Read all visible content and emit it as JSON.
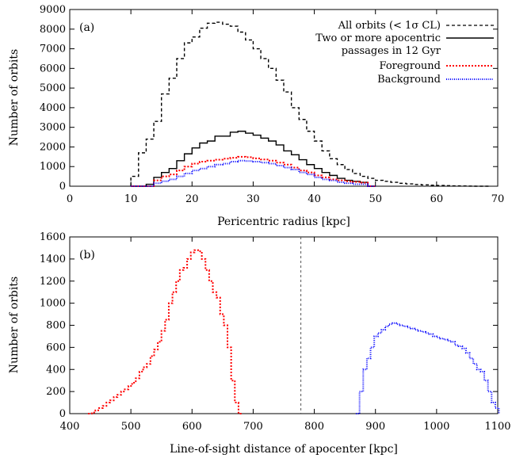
{
  "chart_data": [
    {
      "type": "line",
      "panel_label": "(a)",
      "xlabel": "Pericentric radius [kpc]",
      "ylabel": "Number of orbits",
      "xlim": [
        0,
        70
      ],
      "ylim": [
        0,
        9000
      ],
      "xticks": [
        0,
        10,
        20,
        30,
        40,
        50,
        60,
        70
      ],
      "yticks": [
        0,
        1000,
        2000,
        3000,
        4000,
        5000,
        6000,
        7000,
        8000,
        9000
      ],
      "legend_position": "top-right",
      "series": [
        {
          "name": "All orbits (< 1σ CL)",
          "color": "#000000",
          "style": "dashed",
          "bin_width": 1.25,
          "x": [
            10,
            11.25,
            12.5,
            13.75,
            15,
            16.25,
            17.5,
            18.75,
            20,
            21.25,
            22.5,
            23.75,
            25,
            26.25,
            27.5,
            28.75,
            30,
            31.25,
            32.5,
            33.75,
            35,
            36.25,
            37.5,
            38.75,
            40,
            41.25,
            42.5,
            43.75,
            45,
            46.25,
            47.5,
            48.75,
            50,
            51.25,
            52.5,
            53.75,
            55,
            56.25,
            57.5,
            58.75,
            60,
            61.25,
            62.5,
            63.75,
            65,
            66.25,
            67.5
          ],
          "values": [
            500,
            1700,
            2400,
            3300,
            4700,
            5500,
            6500,
            7300,
            7600,
            8050,
            8300,
            8350,
            8250,
            8150,
            7850,
            7450,
            7000,
            6500,
            6000,
            5400,
            4800,
            4000,
            3400,
            2800,
            2300,
            1800,
            1400,
            1100,
            850,
            650,
            500,
            400,
            300,
            250,
            200,
            150,
            120,
            90,
            70,
            50,
            35,
            25,
            15,
            10,
            5,
            0,
            0
          ]
        },
        {
          "name": "Two or more apocentric passages in 12 Gyr",
          "color": "#000000",
          "style": "solid",
          "bin_width": 1.25,
          "x": [
            10,
            11.25,
            12.5,
            13.75,
            15,
            16.25,
            17.5,
            18.75,
            20,
            21.25,
            22.5,
            23.75,
            25,
            26.25,
            27.5,
            28.75,
            30,
            31.25,
            32.5,
            33.75,
            35,
            36.25,
            37.5,
            38.75,
            40,
            41.25,
            42.5,
            43.75,
            45,
            46.25,
            47.5,
            48.75
          ],
          "values": [
            0,
            0,
            100,
            450,
            700,
            900,
            1300,
            1650,
            1950,
            2200,
            2300,
            2550,
            2550,
            2750,
            2800,
            2700,
            2600,
            2450,
            2300,
            2100,
            1800,
            1600,
            1350,
            1100,
            900,
            700,
            550,
            400,
            300,
            250,
            200,
            0
          ]
        },
        {
          "name": "Foreground",
          "color": "#ff0000",
          "style": "dotted",
          "bin_width": 1.25,
          "x": [
            10,
            11.25,
            12.5,
            13.75,
            15,
            16.25,
            17.5,
            18.75,
            20,
            21.25,
            22.5,
            23.75,
            25,
            26.25,
            27.5,
            28.75,
            30,
            31.25,
            32.5,
            33.75,
            35,
            36.25,
            37.5,
            38.75,
            40,
            41.25,
            42.5,
            43.75,
            45,
            46.25,
            47.5,
            48.75
          ],
          "values": [
            0,
            0,
            0,
            300,
            500,
            600,
            800,
            1000,
            1150,
            1250,
            1300,
            1350,
            1400,
            1450,
            1500,
            1480,
            1420,
            1360,
            1300,
            1200,
            1100,
            950,
            800,
            700,
            550,
            450,
            350,
            300,
            250,
            220,
            180,
            0
          ]
        },
        {
          "name": "Background",
          "color": "#0000ff",
          "style": "dotted",
          "bin_width": 1.25,
          "x": [
            10,
            11.25,
            12.5,
            13.75,
            15,
            16.25,
            17.5,
            18.75,
            20,
            21.25,
            22.5,
            23.75,
            25,
            26.25,
            27.5,
            28.75,
            30,
            31.25,
            32.5,
            33.75,
            35,
            36.25,
            37.5,
            38.75,
            40,
            41.25,
            42.5,
            43.75,
            45,
            46.25,
            47.5,
            48.75
          ],
          "values": [
            0,
            0,
            0,
            150,
            250,
            350,
            500,
            650,
            800,
            900,
            1000,
            1100,
            1150,
            1250,
            1300,
            1280,
            1250,
            1200,
            1150,
            1050,
            950,
            850,
            700,
            600,
            450,
            350,
            300,
            200,
            150,
            100,
            100,
            0
          ]
        }
      ]
    },
    {
      "type": "line",
      "panel_label": "(b)",
      "xlabel": "Line-of-sight distance of apocenter [kpc]",
      "ylabel": "Number of orbits",
      "xlim": [
        400,
        1100
      ],
      "ylim": [
        0,
        1600
      ],
      "xticks": [
        400,
        500,
        600,
        700,
        800,
        900,
        1000,
        1100
      ],
      "yticks": [
        0,
        200,
        400,
        600,
        800,
        1000,
        1200,
        1400,
        1600
      ],
      "vline_x": 778,
      "series": [
        {
          "name": "Foreground",
          "color": "#ff0000",
          "style": "dotted",
          "bin_width": 6,
          "x": [
            430,
            436,
            442,
            448,
            454,
            460,
            466,
            472,
            478,
            484,
            490,
            496,
            502,
            508,
            514,
            520,
            526,
            532,
            538,
            544,
            550,
            556,
            562,
            568,
            574,
            580,
            586,
            592,
            598,
            604,
            610,
            616,
            622,
            628,
            634,
            640,
            646,
            652,
            658,
            664,
            670,
            676
          ],
          "values": [
            0,
            10,
            30,
            50,
            70,
            100,
            120,
            150,
            170,
            200,
            220,
            250,
            280,
            320,
            380,
            420,
            450,
            520,
            580,
            650,
            750,
            850,
            1000,
            1100,
            1200,
            1300,
            1320,
            1400,
            1460,
            1480,
            1470,
            1400,
            1300,
            1200,
            1100,
            1050,
            900,
            800,
            600,
            300,
            100,
            0
          ]
        },
        {
          "name": "Background",
          "color": "#0000ff",
          "style": "dotted",
          "bin_width": 6,
          "x": [
            868,
            874,
            880,
            886,
            892,
            898,
            904,
            910,
            916,
            922,
            928,
            934,
            940,
            946,
            952,
            958,
            964,
            970,
            976,
            982,
            988,
            994,
            1000,
            1006,
            1012,
            1018,
            1024,
            1030,
            1036,
            1042,
            1048,
            1054,
            1060,
            1066,
            1072,
            1078,
            1084,
            1090,
            1096
          ],
          "values": [
            0,
            200,
            400,
            500,
            600,
            700,
            730,
            760,
            790,
            810,
            820,
            810,
            800,
            790,
            780,
            770,
            760,
            750,
            740,
            730,
            720,
            700,
            690,
            680,
            670,
            660,
            650,
            620,
            610,
            590,
            550,
            500,
            450,
            400,
            380,
            300,
            200,
            100,
            50
          ]
        }
      ]
    }
  ],
  "legend": {
    "entries": [
      "All orbits (< 1σ CL)",
      "Two or more apocentric",
      "passages in 12 Gyr",
      "Foreground",
      "Background"
    ]
  }
}
